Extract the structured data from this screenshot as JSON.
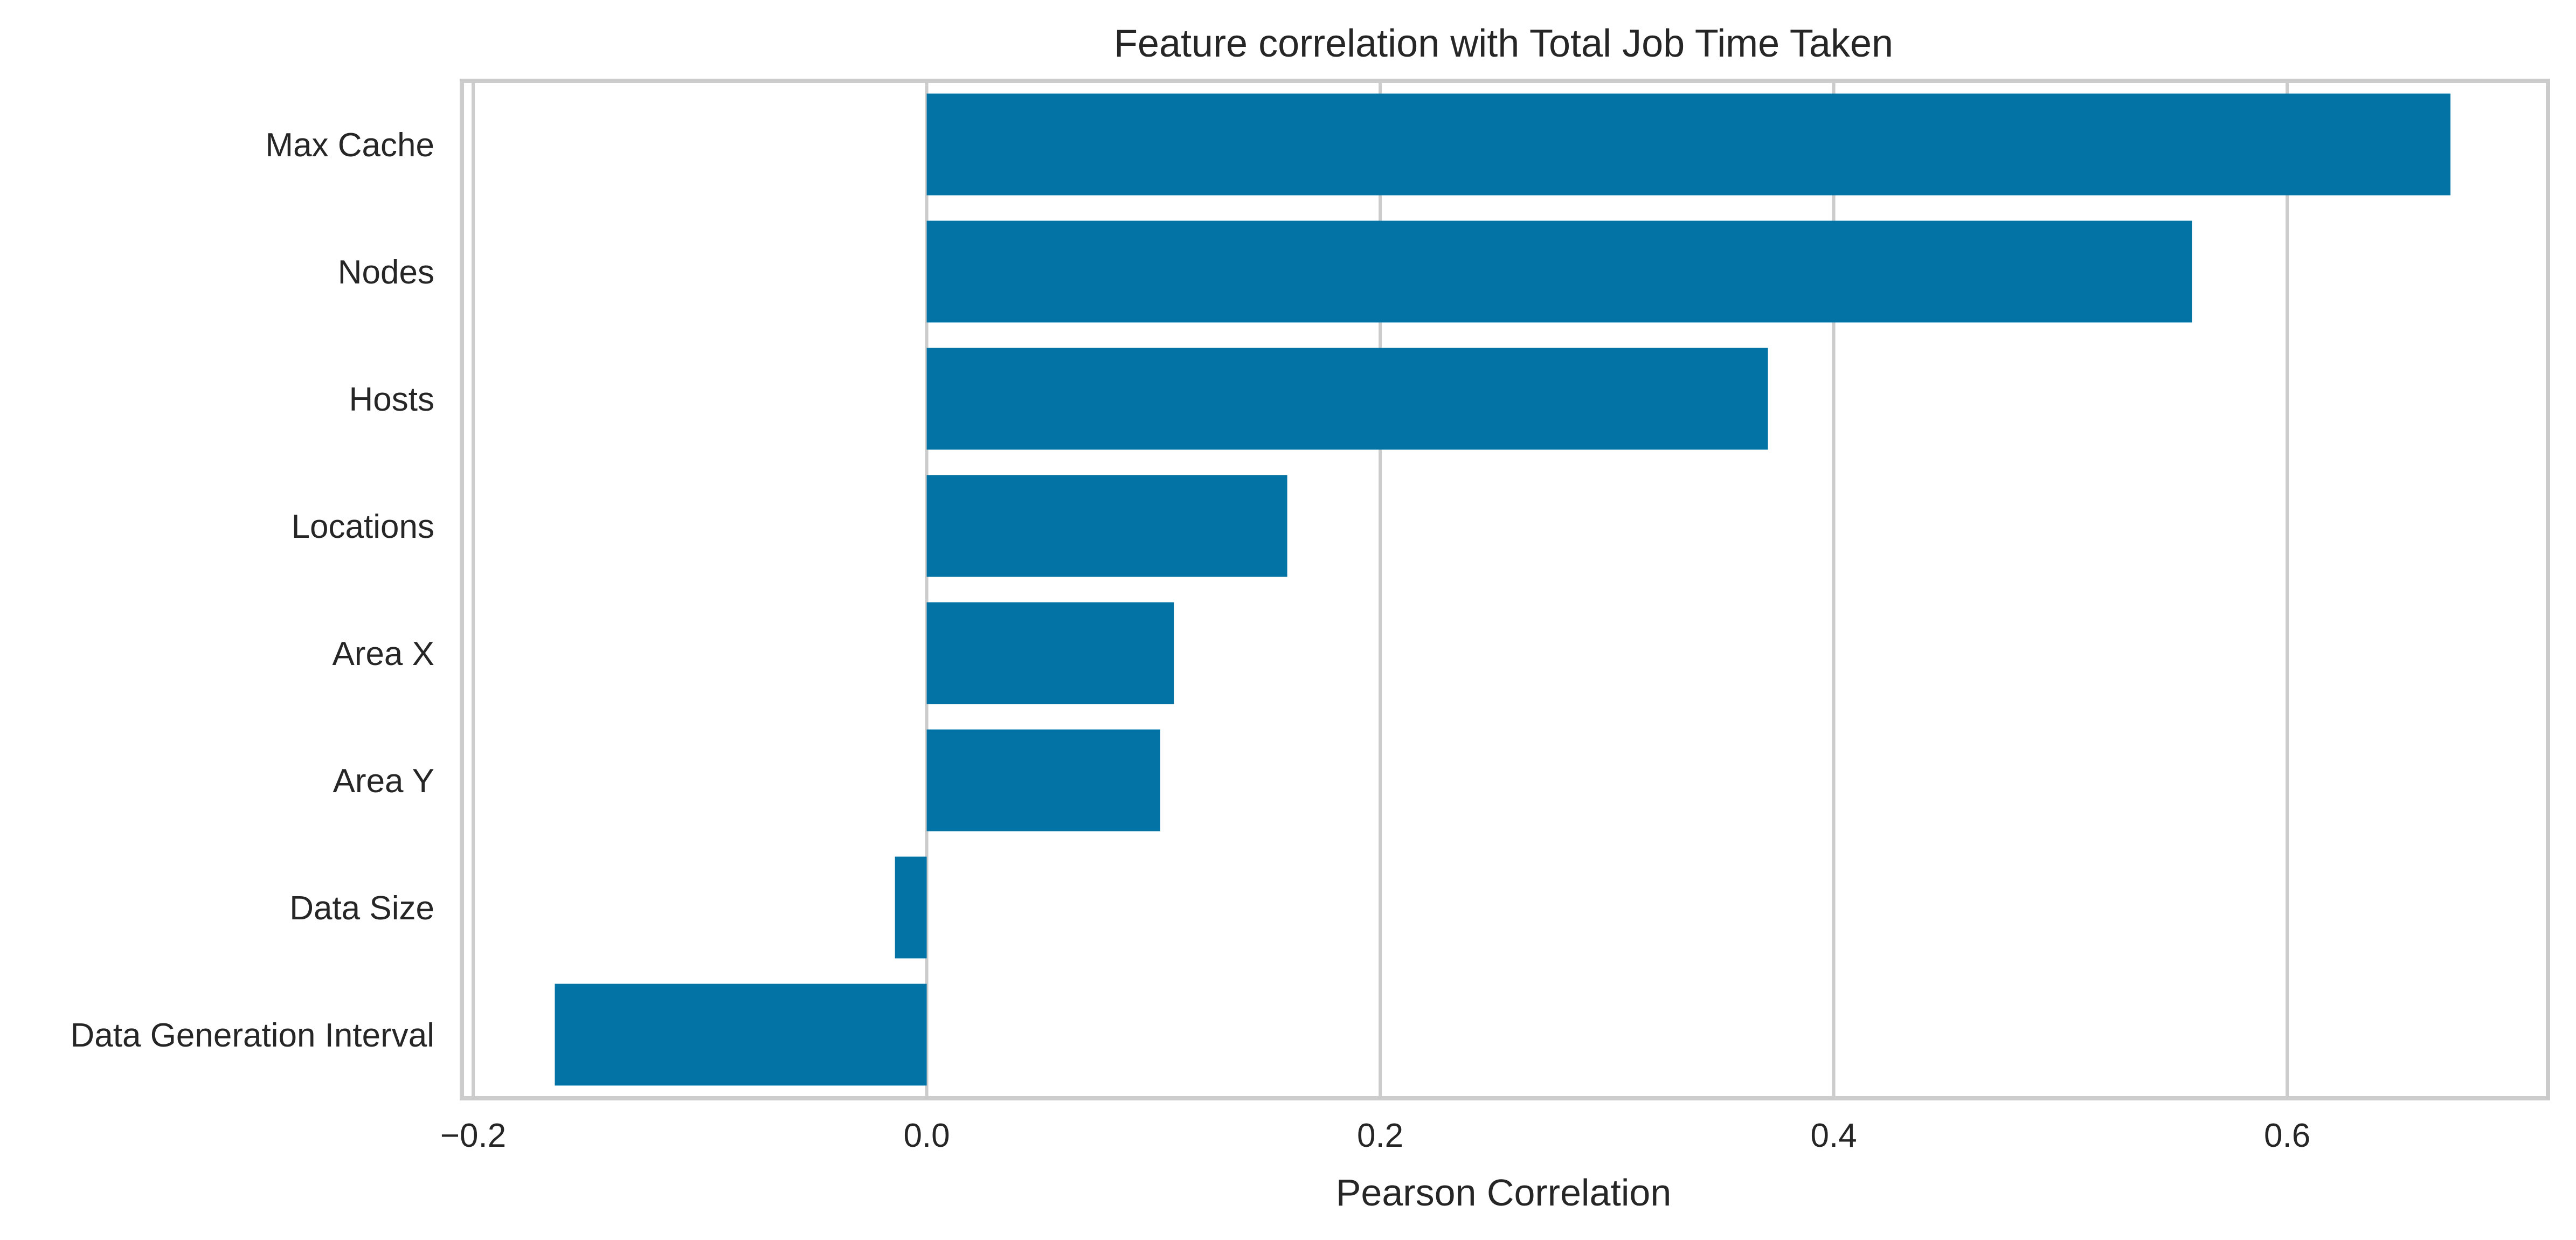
{
  "chart_data": {
    "type": "bar",
    "orientation": "horizontal",
    "title": "Feature correlation with Total Job Time Taken",
    "xlabel": "Pearson Correlation",
    "ylabel": "",
    "categories": [
      "Max Cache",
      "Nodes",
      "Hosts",
      "Locations",
      "Area X",
      "Area Y",
      "Data Size",
      "Data Generation Interval"
    ],
    "values": [
      0.672,
      0.558,
      0.371,
      0.159,
      0.109,
      0.103,
      -0.014,
      -0.164
    ],
    "xlim": [
      -0.205,
      0.715
    ],
    "xticks": [
      -0.2,
      0.0,
      0.2,
      0.4,
      0.6
    ],
    "xtick_labels": [
      "−0.2",
      "0.0",
      "0.2",
      "0.4",
      "0.6"
    ],
    "grid": true,
    "bar_color": "#0372a5",
    "grid_color": "#cccccc",
    "frame_color": "#cccccc",
    "text_color": "#262626"
  }
}
